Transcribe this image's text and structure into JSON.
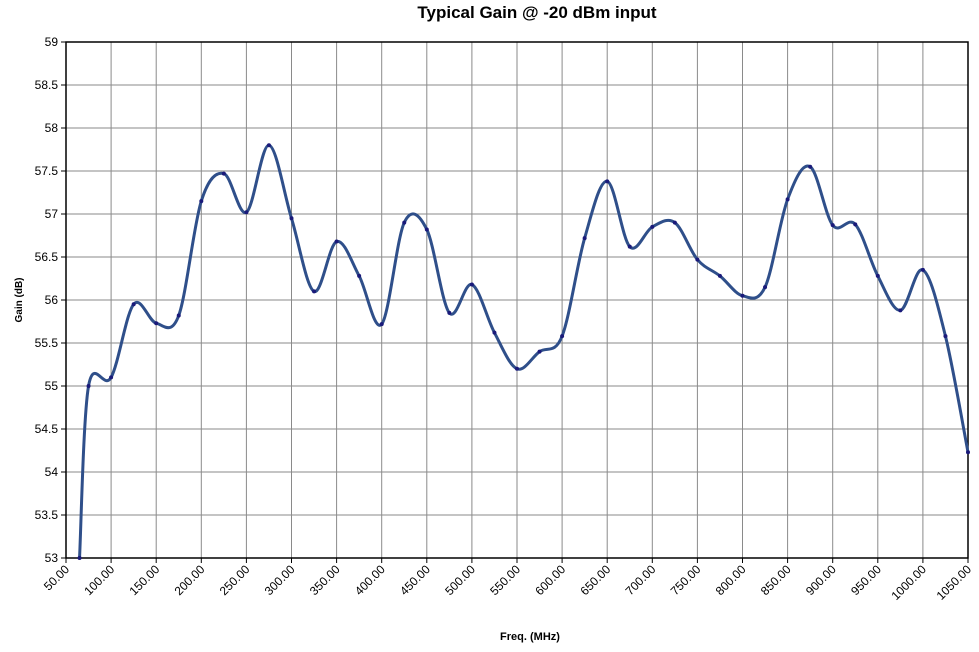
{
  "chart_data": {
    "type": "line",
    "title": "Typical Gain @ -20 dBm input",
    "x_label": "Freq. (MHz)",
    "y_label": "Gain (dB)",
    "x": [
      65,
      75,
      100,
      125,
      150,
      175,
      200,
      225,
      250,
      275,
      300,
      325,
      350,
      375,
      400,
      425,
      450,
      475,
      500,
      525,
      550,
      575,
      600,
      625,
      650,
      675,
      700,
      725,
      750,
      775,
      800,
      825,
      850,
      875,
      900,
      925,
      950,
      975,
      1000,
      1025,
      1050
    ],
    "series": [
      {
        "name": "Gain",
        "color": "#2f4f8a",
        "values": [
          53,
          55.0,
          55.1,
          55.95,
          55.73,
          55.82,
          57.15,
          57.47,
          57.02,
          57.8,
          56.95,
          56.1,
          56.68,
          56.28,
          55.72,
          56.9,
          56.82,
          55.85,
          56.18,
          55.62,
          55.2,
          55.4,
          55.58,
          56.72,
          57.38,
          56.62,
          56.85,
          56.9,
          56.47,
          56.28,
          56.05,
          56.15,
          57.17,
          57.55,
          56.87,
          56.88,
          56.28,
          55.88,
          56.35,
          55.58,
          54.23
        ]
      }
    ],
    "xlim": [
      50,
      1050
    ],
    "xticks": [
      {
        "value": 50,
        "label": "50.00"
      },
      {
        "value": 100,
        "label": "100.00"
      },
      {
        "value": 150,
        "label": "150.00"
      },
      {
        "value": 200,
        "label": "200.00"
      },
      {
        "value": 250,
        "label": "250.00"
      },
      {
        "value": 300,
        "label": "300.00"
      },
      {
        "value": 350,
        "label": "350.00"
      },
      {
        "value": 400,
        "label": "400.00"
      },
      {
        "value": 450,
        "label": "450.00"
      },
      {
        "value": 500,
        "label": "500.00"
      },
      {
        "value": 550,
        "label": "550.00"
      },
      {
        "value": 600,
        "label": "600.00"
      },
      {
        "value": 650,
        "label": "650.00"
      },
      {
        "value": 700,
        "label": "700.00"
      },
      {
        "value": 750,
        "label": "750.00"
      },
      {
        "value": 800,
        "label": "800.00"
      },
      {
        "value": 850,
        "label": "850.00"
      },
      {
        "value": 900,
        "label": "900.00"
      },
      {
        "value": 950,
        "label": "950.00"
      },
      {
        "value": 1000,
        "label": "1000.00"
      },
      {
        "value": 1050,
        "label": "1050.00"
      }
    ],
    "ylim": [
      53,
      59
    ],
    "yticks": [
      53,
      53.5,
      54,
      54.5,
      55,
      55.5,
      56,
      56.5,
      57,
      57.5,
      58,
      58.5,
      59
    ],
    "grid": true
  }
}
